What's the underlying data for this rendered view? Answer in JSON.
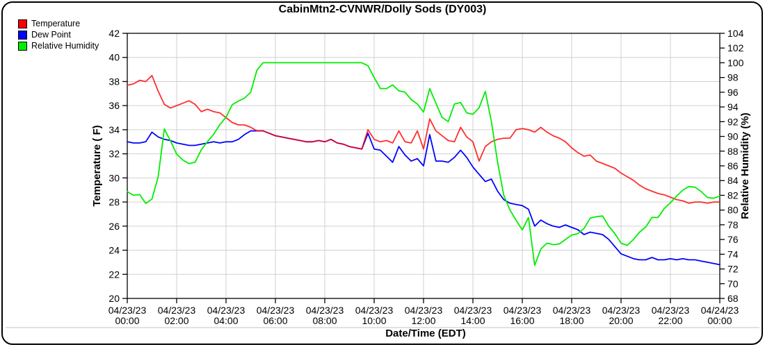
{
  "chart_data": {
    "type": "line",
    "title": "CabinMtn2-CVNWR/Dolly Sods (DY003)",
    "xlabel": "Date/Time (EDT)",
    "grid": true,
    "legend_position": "top-left",
    "x_start_hour": 0,
    "x_end_hour": 24,
    "x_step_hours": 0.25,
    "x_tick_interval_hours": 2,
    "x_tick_labels": [
      {
        "date": "04/23/23",
        "time": "00:00"
      },
      {
        "date": "04/23/23",
        "time": "02:00"
      },
      {
        "date": "04/23/23",
        "time": "04:00"
      },
      {
        "date": "04/23/23",
        "time": "06:00"
      },
      {
        "date": "04/23/23",
        "time": "08:00"
      },
      {
        "date": "04/23/23",
        "time": "10:00"
      },
      {
        "date": "04/23/23",
        "time": "12:00"
      },
      {
        "date": "04/23/23",
        "time": "14:00"
      },
      {
        "date": "04/23/23",
        "time": "16:00"
      },
      {
        "date": "04/23/23",
        "time": "18:00"
      },
      {
        "date": "04/23/23",
        "time": "20:00"
      },
      {
        "date": "04/23/23",
        "time": "22:00"
      },
      {
        "date": "04/24/23",
        "time": "00:00"
      }
    ],
    "y_left_axis": {
      "label": "Temperature ( F)",
      "min": 20,
      "max": 42,
      "tick_step": 2,
      "ticks": [
        42,
        40,
        38,
        36,
        34,
        32,
        30,
        28,
        26,
        24,
        22,
        20
      ]
    },
    "y_right_axis": {
      "label": "Relative Humidity (%)",
      "min": 68,
      "max": 104,
      "tick_step": 2,
      "ticks": [
        104,
        102,
        100,
        98,
        96,
        94,
        92,
        90,
        88,
        86,
        84,
        82,
        80,
        78,
        76,
        74,
        72,
        70,
        68
      ]
    },
    "values_estimated_from_plot": true,
    "series": [
      {
        "name": "Temperature",
        "axis": "left",
        "unit": "F",
        "color": "#ff0000",
        "values": [
          37.7,
          37.8,
          38.1,
          38.0,
          38.5,
          37.2,
          36.1,
          35.8,
          36.0,
          36.2,
          36.4,
          36.1,
          35.5,
          35.7,
          35.5,
          35.4,
          35.0,
          34.6,
          34.4,
          34.4,
          34.2,
          33.9,
          33.9,
          33.7,
          33.5,
          33.4,
          33.3,
          33.2,
          33.1,
          33.0,
          33.0,
          33.1,
          33.0,
          33.2,
          32.9,
          32.8,
          32.6,
          32.5,
          32.4,
          34.0,
          33.2,
          33.0,
          33.1,
          32.9,
          33.9,
          33.0,
          32.9,
          33.9,
          32.4,
          34.9,
          33.9,
          33.5,
          33.1,
          33.0,
          34.2,
          33.4,
          33.0,
          31.4,
          32.6,
          33.0,
          33.2,
          33.3,
          33.3,
          34.0,
          34.1,
          34.0,
          33.8,
          34.2,
          33.8,
          33.5,
          33.3,
          33.0,
          32.5,
          32.1,
          31.8,
          31.9,
          31.4,
          31.2,
          31.0,
          30.8,
          30.4,
          30.1,
          29.8,
          29.4,
          29.1,
          28.9,
          28.7,
          28.6,
          28.4,
          28.2,
          28.1,
          27.9,
          28.0,
          28.0,
          27.9,
          28.0,
          28.0
        ]
      },
      {
        "name": "Dew Point",
        "axis": "left",
        "unit": "F",
        "color": "#0000ff",
        "values": [
          33.0,
          32.9,
          32.9,
          33.0,
          33.8,
          33.4,
          33.2,
          33.1,
          32.9,
          32.8,
          32.7,
          32.7,
          32.8,
          32.9,
          33.0,
          32.9,
          33.0,
          33.0,
          33.2,
          33.6,
          33.9,
          33.9,
          33.9,
          33.7,
          33.5,
          33.4,
          33.3,
          33.2,
          33.1,
          33.0,
          33.0,
          33.1,
          33.0,
          33.2,
          32.9,
          32.8,
          32.6,
          32.5,
          32.4,
          33.7,
          32.4,
          32.3,
          31.8,
          31.3,
          32.6,
          31.9,
          31.4,
          31.6,
          31.0,
          33.6,
          31.4,
          31.4,
          31.3,
          31.7,
          32.3,
          31.7,
          30.9,
          30.3,
          29.7,
          29.9,
          28.9,
          28.2,
          27.9,
          27.8,
          27.7,
          27.4,
          26.0,
          26.5,
          26.2,
          26.0,
          25.9,
          26.1,
          25.9,
          25.7,
          25.3,
          25.5,
          25.4,
          25.3,
          24.9,
          24.3,
          23.7,
          23.5,
          23.3,
          23.2,
          23.2,
          23.4,
          23.2,
          23.2,
          23.3,
          23.2,
          23.3,
          23.2,
          23.2,
          23.1,
          23.0,
          22.9,
          22.8
        ]
      },
      {
        "name": "Relative Humidity",
        "axis": "right",
        "unit": "%",
        "color": "#00ee00",
        "values": [
          82.5,
          82.0,
          82.1,
          80.9,
          81.5,
          84.5,
          91.0,
          89.4,
          87.6,
          86.8,
          86.3,
          86.5,
          88.2,
          89.3,
          90.3,
          91.6,
          92.6,
          94.3,
          94.8,
          95.2,
          96.0,
          99.0,
          100.0,
          100.0,
          100.0,
          100.0,
          100.0,
          100.0,
          100.0,
          100.0,
          100.0,
          100.0,
          100.0,
          100.0,
          100.0,
          100.0,
          100.0,
          100.0,
          100.0,
          99.6,
          98.0,
          96.5,
          96.5,
          97.0,
          96.2,
          96.0,
          95.0,
          94.4,
          93.3,
          96.5,
          94.5,
          92.6,
          92.0,
          94.4,
          94.6,
          93.2,
          93.0,
          93.9,
          96.1,
          92.0,
          86.5,
          82.0,
          80.0,
          78.6,
          77.3,
          79.0,
          72.5,
          74.7,
          75.5,
          75.3,
          75.4,
          76.0,
          76.6,
          76.8,
          77.5,
          78.9,
          79.1,
          79.2,
          77.8,
          76.8,
          75.5,
          75.2,
          76.0,
          77.0,
          77.7,
          79.0,
          79.0,
          80.2,
          81.0,
          81.9,
          82.7,
          83.2,
          83.1,
          82.5,
          81.7,
          81.6,
          81.9
        ]
      }
    ]
  },
  "styles": {
    "background": "#ffffff",
    "border_color": "#000000",
    "axis_color": "#000000",
    "grid_color": "#d0d0d0",
    "separator_color": "#d8d8d8",
    "temperature_color": "#ff0000",
    "dew_point_color": "#0000ff",
    "relative_humidity_color": "#00ee00"
  }
}
